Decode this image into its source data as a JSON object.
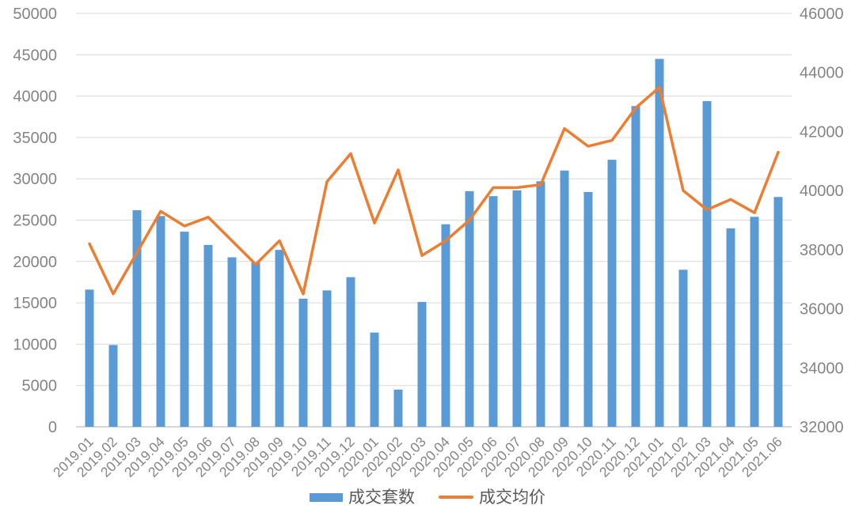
{
  "chart_data": {
    "type": "bar",
    "combo": "bar+line dual axis",
    "title": "",
    "categories": [
      "2019.01",
      "2019.02",
      "2019.03",
      "2019.04",
      "2019.05",
      "2019.06",
      "2019.07",
      "2019.08",
      "2019.09",
      "2019.10",
      "2019.11",
      "2019.12",
      "2020.01",
      "2020.02",
      "2020.03",
      "2020.04",
      "2020.05",
      "2020.06",
      "2020.07",
      "2020.08",
      "2020.09",
      "2020.10",
      "2020.11",
      "2020.12",
      "2021.01",
      "2021.02",
      "2021.03",
      "2021.04",
      "2021.05",
      "2021.06"
    ],
    "series": [
      {
        "name": "成交套数",
        "type": "bar",
        "axis": "left",
        "color": "#5B9BD5",
        "values": [
          16600,
          9900,
          26200,
          25500,
          23600,
          22000,
          20500,
          19900,
          21400,
          15500,
          16500,
          18100,
          11400,
          4500,
          15100,
          24500,
          28500,
          27900,
          28600,
          29700,
          31000,
          28400,
          32300,
          38800,
          44500,
          19000,
          39400,
          24000,
          25400,
          27800
        ]
      },
      {
        "name": "成交均价",
        "type": "line",
        "axis": "right",
        "color": "#ED7D31",
        "values": [
          38200,
          36500,
          37900,
          39300,
          38800,
          39100,
          38300,
          37500,
          38300,
          36500,
          40300,
          41250,
          38900,
          40700,
          37800,
          38300,
          39000,
          40100,
          40100,
          40200,
          42100,
          41500,
          41700,
          42800,
          43500,
          40000,
          39350,
          39700,
          39250,
          41300
        ]
      }
    ],
    "left_axis": {
      "min": 0,
      "max": 50000,
      "step": 5000,
      "tick_labels": [
        "0",
        "5000",
        "10000",
        "15000",
        "20000",
        "25000",
        "30000",
        "35000",
        "40000",
        "45000",
        "50000"
      ]
    },
    "right_axis": {
      "min": 32000,
      "max": 46000,
      "step": 2000,
      "tick_labels": [
        "32000",
        "34000",
        "36000",
        "38000",
        "40000",
        "42000",
        "44000",
        "46000"
      ]
    },
    "grid": true,
    "legend_position": "bottom",
    "xlabel": "",
    "ylabel": ""
  },
  "legend": {
    "bar_label": "成交套数",
    "line_label": "成交均价"
  },
  "colors": {
    "bar": "#5B9BD5",
    "line": "#ED7D31",
    "gridline": "#D9D9D9",
    "axis_line": "#C9C9C9",
    "tick_text": "#858585",
    "legend_text": "#595959",
    "background": "#FFFFFF"
  }
}
